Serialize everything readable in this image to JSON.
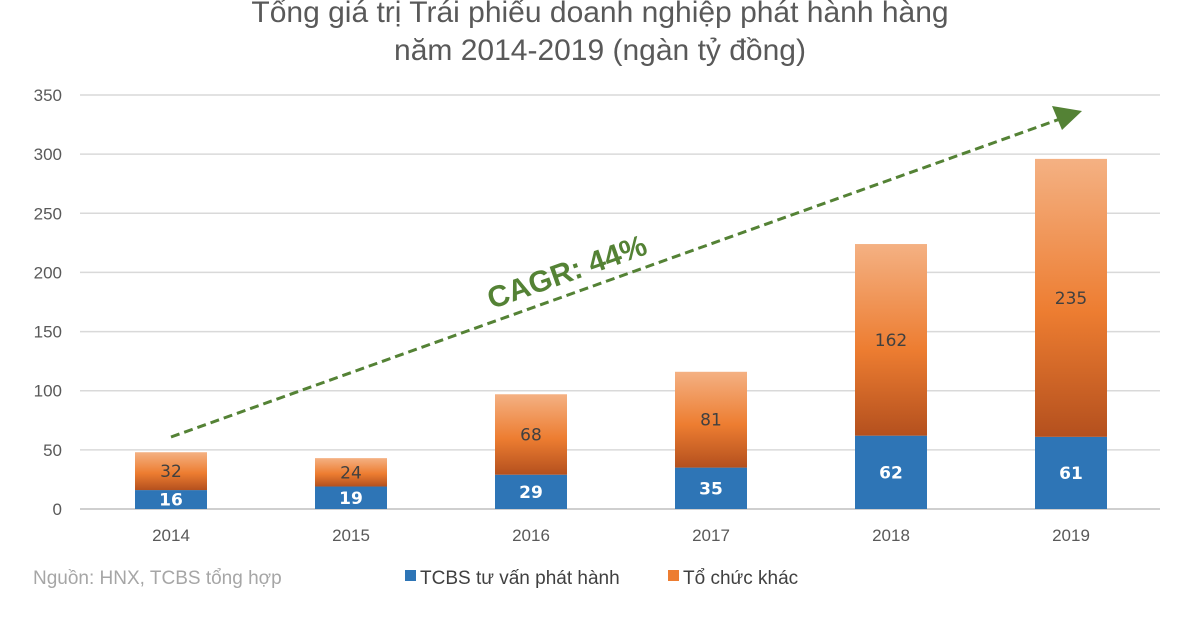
{
  "chart_data": {
    "type": "bar",
    "stacked": true,
    "title": "Tổng giá trị Trái phiếu doanh nghiệp phát hành hàng năm 2014-2019 (ngàn tỷ đồng)",
    "title_lines": [
      "Tổng giá trị Trái phiếu doanh nghiệp phát hành hàng",
      "năm 2014-2019 (ngàn tỷ đồng)"
    ],
    "categories": [
      "2014",
      "2015",
      "2016",
      "2017",
      "2018",
      "2019"
    ],
    "series": [
      {
        "name": "TCBS tư vấn phát hành",
        "values": [
          16,
          19,
          29,
          35,
          62,
          61
        ],
        "color": "#2e75b6"
      },
      {
        "name": "Tổ chức khác",
        "values": [
          32,
          24,
          68,
          81,
          162,
          235
        ],
        "color": "#ed7d31"
      }
    ],
    "ylim": [
      0,
      350
    ],
    "yticks": [
      "0",
      "50",
      "100",
      "150",
      "200",
      "250",
      "300",
      "350"
    ],
    "grid": true,
    "legend": "bottom",
    "annotation": {
      "text": "CAGR: 44%",
      "color": "#548235",
      "style": "dashed-arrow",
      "from_category": "2014",
      "to_category": "2019"
    },
    "source": "Nguồn: HNX, TCBS tổng hợp"
  }
}
